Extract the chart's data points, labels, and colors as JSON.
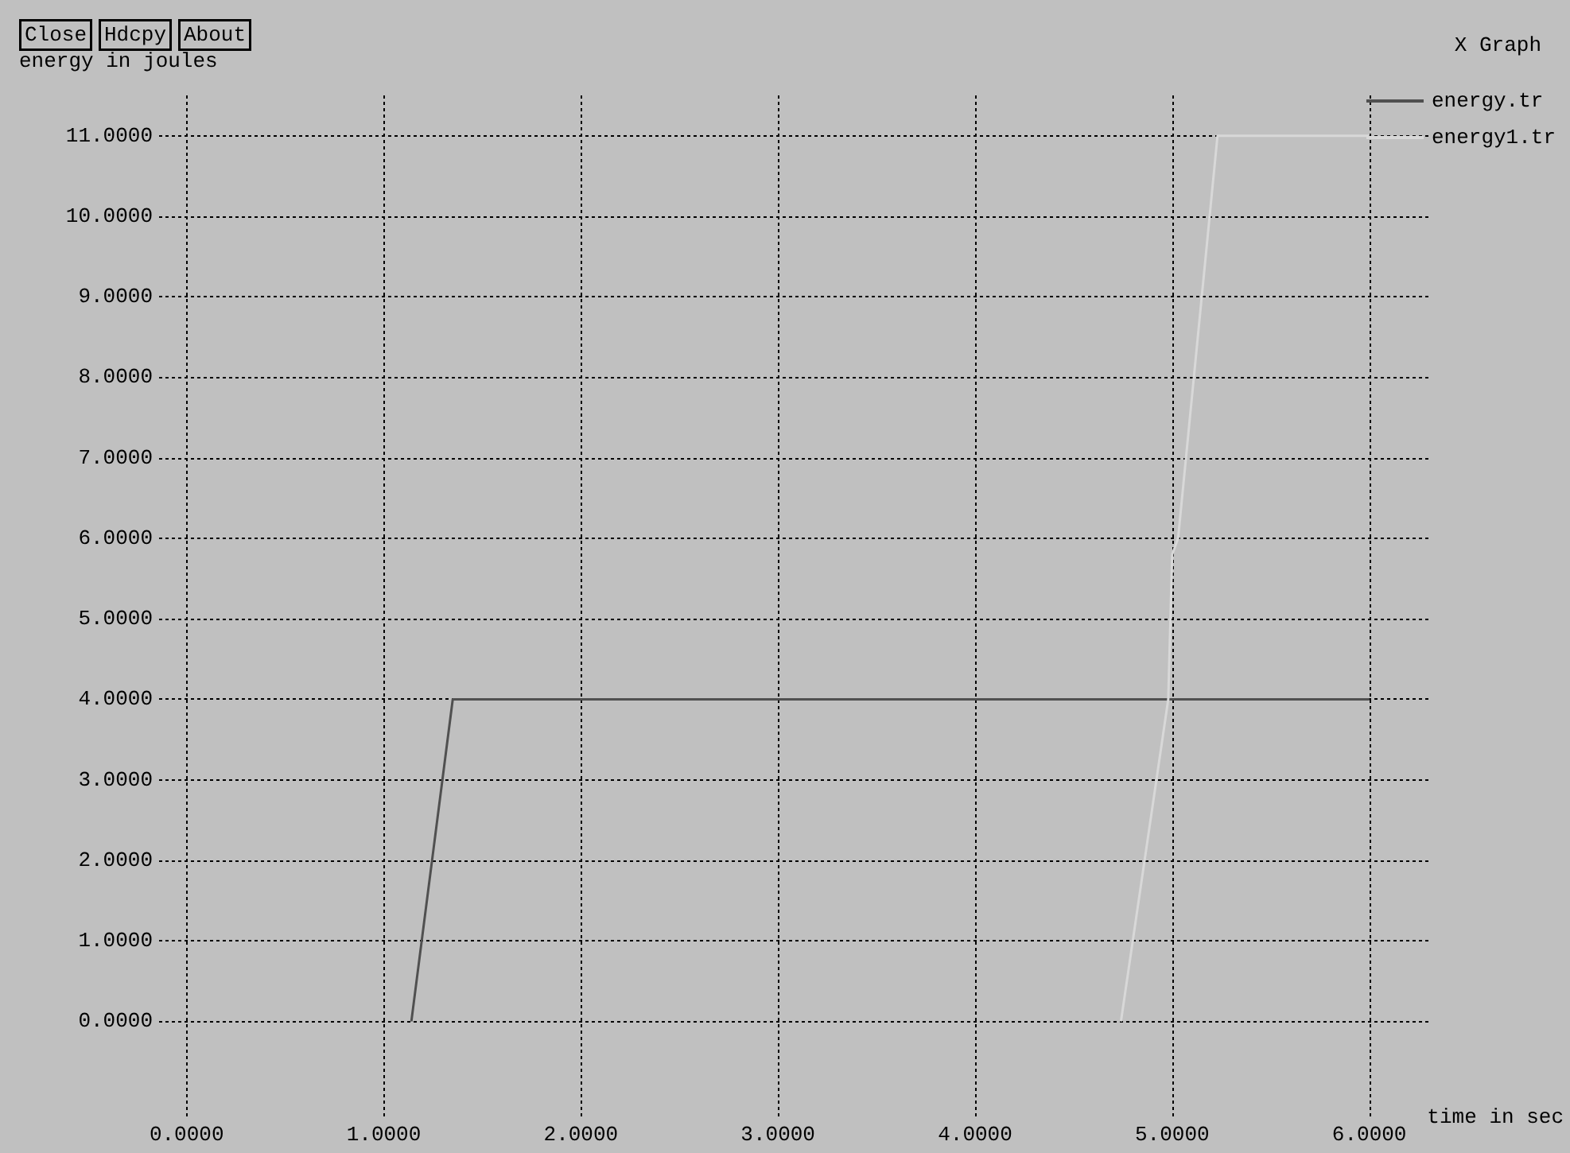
{
  "chart_data": {
    "type": "line",
    "title": "X Graph",
    "xlabel": "time in sec",
    "ylabel": "energy in joules",
    "annotations": [
      "Close",
      "Hdcpy",
      "About"
    ],
    "series": [
      {
        "name": "energy.tr",
        "color": "#505050",
        "x": [
          1.14,
          1.35,
          6.0
        ],
        "values": [
          0,
          4,
          4
        ]
      },
      {
        "name": "energy1.tr",
        "color": "#d8d8d8",
        "x": [
          4.74,
          4.98,
          5.0,
          5.03,
          5.23,
          6.0
        ],
        "values": [
          0,
          4,
          5.8,
          6,
          11,
          11
        ]
      }
    ],
    "xlim": [
      -0.14,
      6.3
    ],
    "ylim": [
      -1.2,
      11.5
    ],
    "xticks": [
      {
        "value": 0,
        "label": "0.0000"
      },
      {
        "value": 1,
        "label": "1.0000"
      },
      {
        "value": 2,
        "label": "2.0000"
      },
      {
        "value": 3,
        "label": "3.0000"
      },
      {
        "value": 4,
        "label": "4.0000"
      },
      {
        "value": 5,
        "label": "5.0000"
      },
      {
        "value": 6,
        "label": "6.0000"
      }
    ],
    "yticks": [
      {
        "value": 0,
        "label": "0.0000"
      },
      {
        "value": 1,
        "label": "1.0000"
      },
      {
        "value": 2,
        "label": "2.0000"
      },
      {
        "value": 3,
        "label": "3.0000"
      },
      {
        "value": 4,
        "label": "4.0000"
      },
      {
        "value": 5,
        "label": "5.0000"
      },
      {
        "value": 6,
        "label": "6.0000"
      },
      {
        "value": 7,
        "label": "7.0000"
      },
      {
        "value": 8,
        "label": "8.0000"
      },
      {
        "value": 9,
        "label": "9.0000"
      },
      {
        "value": 10,
        "label": "10.0000"
      },
      {
        "value": 11,
        "label": "11.0000"
      }
    ],
    "grid": true,
    "legend": "top right"
  }
}
